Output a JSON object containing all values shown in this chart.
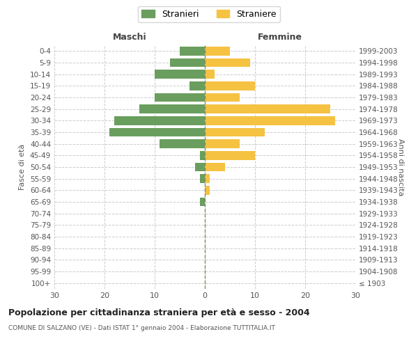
{
  "age_groups": [
    "100+",
    "95-99",
    "90-94",
    "85-89",
    "80-84",
    "75-79",
    "70-74",
    "65-69",
    "60-64",
    "55-59",
    "50-54",
    "45-49",
    "40-44",
    "35-39",
    "30-34",
    "25-29",
    "20-24",
    "15-19",
    "10-14",
    "5-9",
    "0-4"
  ],
  "birth_years": [
    "≤ 1903",
    "1904-1908",
    "1909-1913",
    "1914-1918",
    "1919-1923",
    "1924-1928",
    "1929-1933",
    "1934-1938",
    "1939-1943",
    "1944-1948",
    "1949-1953",
    "1954-1958",
    "1959-1963",
    "1964-1968",
    "1969-1973",
    "1974-1978",
    "1979-1983",
    "1984-1988",
    "1989-1993",
    "1994-1998",
    "1999-2003"
  ],
  "males": [
    0,
    0,
    0,
    0,
    0,
    0,
    0,
    1,
    0,
    1,
    2,
    1,
    9,
    19,
    18,
    13,
    10,
    3,
    10,
    7,
    5
  ],
  "females": [
    0,
    0,
    0,
    0,
    0,
    0,
    0,
    0,
    1,
    1,
    4,
    10,
    7,
    12,
    26,
    25,
    7,
    10,
    2,
    9,
    5
  ],
  "male_color": "#6a9e5e",
  "female_color": "#f5c242",
  "male_label": "Stranieri",
  "female_label": "Straniere",
  "title": "Popolazione per cittadinanza straniera per età e sesso - 2004",
  "subtitle": "COMUNE DI SALZANO (VE) - Dati ISTAT 1° gennaio 2004 - Elaborazione TUTTITALIA.IT",
  "xlabel_left": "Maschi",
  "xlabel_right": "Femmine",
  "ylabel_left": "Fasce di età",
  "ylabel_right": "Anni di nascita",
  "xlim": 30,
  "background_color": "#ffffff",
  "grid_color": "#cccccc"
}
